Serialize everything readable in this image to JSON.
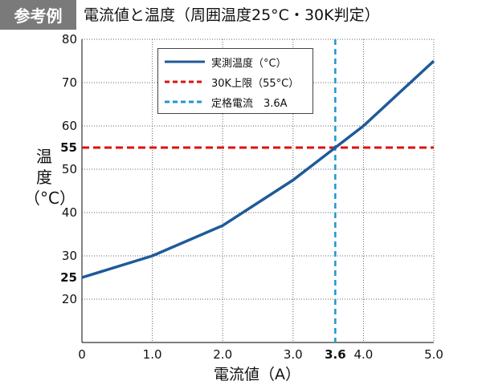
{
  "badge": "参考例",
  "colors": {
    "badge_bg": "#7a7a7a",
    "measured": "#1f5a99",
    "limit": "#dd1111",
    "rated": "#1e96d2",
    "grid": "#666666"
  },
  "chart_data": {
    "type": "line",
    "title": "電流値と温度（周囲温度25°C・30K判定）",
    "xlabel": "電流値（A）",
    "ylabel": "温度（°C）",
    "xlim": [
      0,
      5.0
    ],
    "ylim": [
      10,
      80
    ],
    "grid": true,
    "legend_position": "top-center",
    "x_ticks": [
      {
        "value": 0,
        "label": "0",
        "bold": false
      },
      {
        "value": 1.0,
        "label": "1.0",
        "bold": false
      },
      {
        "value": 2.0,
        "label": "2.0",
        "bold": false
      },
      {
        "value": 3.0,
        "label": "3.0",
        "bold": false
      },
      {
        "value": 3.6,
        "label": "3.6",
        "bold": true
      },
      {
        "value": 4.0,
        "label": "4.0",
        "bold": false
      },
      {
        "value": 5.0,
        "label": "5.0",
        "bold": false
      }
    ],
    "y_ticks": [
      {
        "value": 20,
        "label": "20",
        "bold": false
      },
      {
        "value": 25,
        "label": "25",
        "bold": true
      },
      {
        "value": 30,
        "label": "30",
        "bold": false
      },
      {
        "value": 40,
        "label": "40",
        "bold": false
      },
      {
        "value": 50,
        "label": "50",
        "bold": false
      },
      {
        "value": 55,
        "label": "55",
        "bold": true
      },
      {
        "value": 60,
        "label": "60",
        "bold": false
      },
      {
        "value": 70,
        "label": "70",
        "bold": false
      },
      {
        "value": 80,
        "label": "80",
        "bold": false
      }
    ],
    "series": [
      {
        "name": "実測温度（°C）",
        "style": "solid",
        "color": "#1f5a99",
        "x": [
          0,
          1.0,
          2.0,
          3.0,
          3.6,
          4.0,
          5.0
        ],
        "y": [
          25,
          30,
          37,
          47.5,
          55,
          60,
          75
        ]
      }
    ],
    "reference_lines": [
      {
        "name": "30K上限（55°C）",
        "orientation": "horizontal",
        "value": 55,
        "style": "dashed",
        "color": "#dd1111"
      },
      {
        "name": "定格電流　3.6A",
        "orientation": "vertical",
        "value": 3.6,
        "style": "dashed",
        "color": "#1e96d2"
      }
    ]
  }
}
